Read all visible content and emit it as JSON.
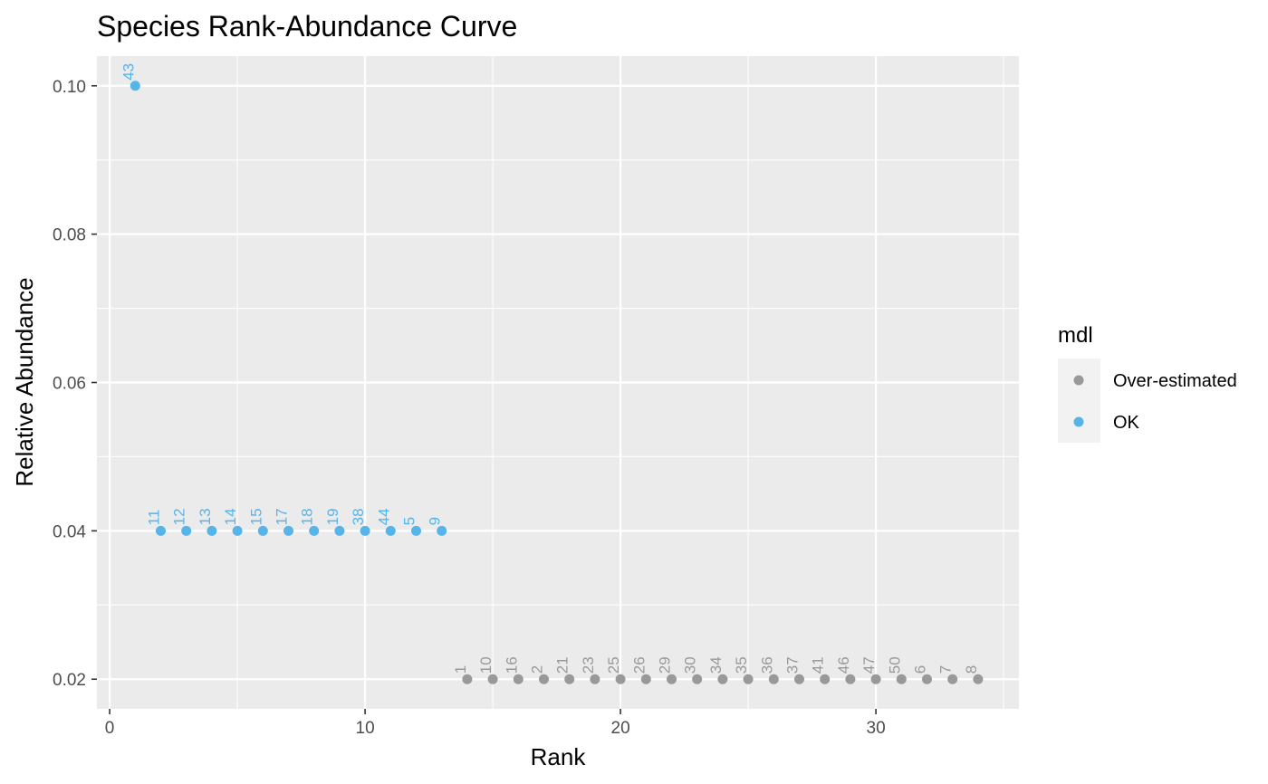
{
  "chart_data": {
    "type": "scatter",
    "title": "Species Rank-Abundance Curve",
    "xlabel": "Rank",
    "ylabel": "Relative Abundance",
    "xlim": [
      -0.5,
      35.6
    ],
    "ylim": [
      0.016,
      0.104
    ],
    "x_ticks": [
      0,
      10,
      20,
      30
    ],
    "x_tick_labels": [
      "0",
      "10",
      "20",
      "30"
    ],
    "y_ticks": [
      0.02,
      0.04,
      0.06,
      0.08,
      0.1
    ],
    "y_tick_labels": [
      "0.02",
      "0.04",
      "0.06",
      "0.08",
      "0.10"
    ],
    "grid": true,
    "legend": {
      "title": "mdl",
      "position": "right",
      "entries": [
        {
          "label": "Over-estimated",
          "color": "#999999"
        },
        {
          "label": "OK",
          "color": "#56B4E9"
        }
      ]
    },
    "series": [
      {
        "name": "OK",
        "color": "#56B4E9",
        "points": [
          {
            "x": 1,
            "y": 0.1,
            "label": "43"
          },
          {
            "x": 2,
            "y": 0.04,
            "label": "11"
          },
          {
            "x": 3,
            "y": 0.04,
            "label": "12"
          },
          {
            "x": 4,
            "y": 0.04,
            "label": "13"
          },
          {
            "x": 5,
            "y": 0.04,
            "label": "14"
          },
          {
            "x": 6,
            "y": 0.04,
            "label": "15"
          },
          {
            "x": 7,
            "y": 0.04,
            "label": "17"
          },
          {
            "x": 8,
            "y": 0.04,
            "label": "18"
          },
          {
            "x": 9,
            "y": 0.04,
            "label": "19"
          },
          {
            "x": 10,
            "y": 0.04,
            "label": "38"
          },
          {
            "x": 11,
            "y": 0.04,
            "label": "44"
          },
          {
            "x": 12,
            "y": 0.04,
            "label": "5"
          },
          {
            "x": 13,
            "y": 0.04,
            "label": "9"
          }
        ]
      },
      {
        "name": "Over-estimated",
        "color": "#999999",
        "points": [
          {
            "x": 14,
            "y": 0.02,
            "label": "1"
          },
          {
            "x": 15,
            "y": 0.02,
            "label": "10"
          },
          {
            "x": 16,
            "y": 0.02,
            "label": "16"
          },
          {
            "x": 17,
            "y": 0.02,
            "label": "2"
          },
          {
            "x": 18,
            "y": 0.02,
            "label": "21"
          },
          {
            "x": 19,
            "y": 0.02,
            "label": "23"
          },
          {
            "x": 20,
            "y": 0.02,
            "label": "25"
          },
          {
            "x": 21,
            "y": 0.02,
            "label": "26"
          },
          {
            "x": 22,
            "y": 0.02,
            "label": "29"
          },
          {
            "x": 23,
            "y": 0.02,
            "label": "30"
          },
          {
            "x": 24,
            "y": 0.02,
            "label": "34"
          },
          {
            "x": 25,
            "y": 0.02,
            "label": "35"
          },
          {
            "x": 26,
            "y": 0.02,
            "label": "36"
          },
          {
            "x": 27,
            "y": 0.02,
            "label": "37"
          },
          {
            "x": 28,
            "y": 0.02,
            "label": "41"
          },
          {
            "x": 29,
            "y": 0.02,
            "label": "46"
          },
          {
            "x": 30,
            "y": 0.02,
            "label": "47"
          },
          {
            "x": 31,
            "y": 0.02,
            "label": "50"
          },
          {
            "x": 32,
            "y": 0.02,
            "label": "6"
          },
          {
            "x": 33,
            "y": 0.02,
            "label": "7"
          },
          {
            "x": 34,
            "y": 0.02,
            "label": "8"
          }
        ]
      }
    ]
  }
}
